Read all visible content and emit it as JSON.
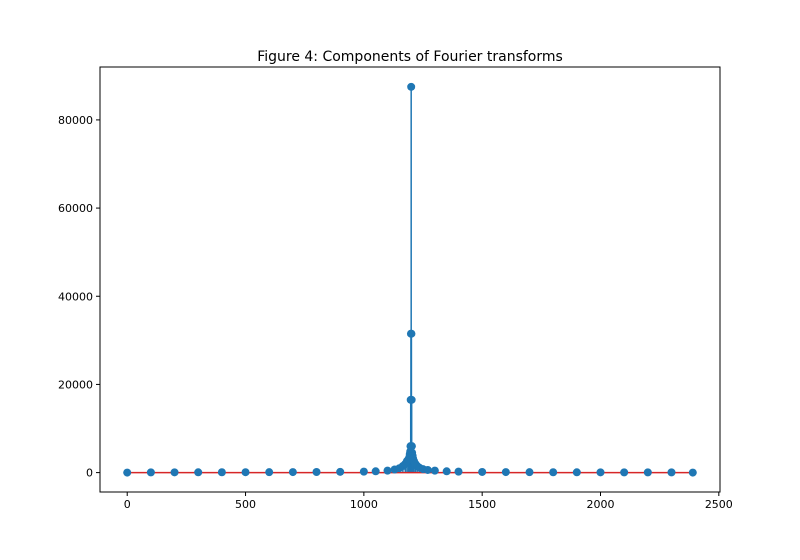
{
  "chart_data": {
    "type": "stem",
    "title": "Figure 4: Components of Fourier transforms",
    "xlabel": "",
    "ylabel": "",
    "xlim": [
      -115,
      2505
    ],
    "ylim": [
      -4400,
      92000
    ],
    "x_ticks": [
      0,
      500,
      1000,
      1500,
      2000,
      2500
    ],
    "y_ticks": [
      0,
      20000,
      40000,
      60000,
      80000
    ],
    "x_tick_labels": [
      "0",
      "500",
      "1000",
      "1500",
      "2000",
      "2500"
    ],
    "y_tick_labels": [
      "0",
      "20000",
      "40000",
      "60000",
      "80000"
    ],
    "colors": {
      "stem": "#1f77b4",
      "baseline": "#d62728"
    },
    "baseline": {
      "y": 0,
      "x_range": [
        0,
        2390
      ]
    },
    "series": [
      {
        "x": [
          0,
          100,
          200,
          300,
          400,
          500,
          600,
          700,
          800,
          900,
          1000,
          1050,
          1100,
          1130,
          1150,
          1165,
          1175,
          1182,
          1188,
          1192,
          1194,
          1196,
          1197,
          1198,
          1199,
          1200,
          1201,
          1202,
          1203,
          1204,
          1206,
          1208,
          1212,
          1218,
          1225,
          1235,
          1250,
          1270,
          1300,
          1350,
          1400,
          1500,
          1600,
          1700,
          1800,
          1900,
          2000,
          2100,
          2200,
          2300,
          2390
        ],
        "y": [
          0,
          50,
          60,
          70,
          80,
          90,
          100,
          120,
          140,
          170,
          220,
          300,
          450,
          700,
          1000,
          1500,
          2000,
          2600,
          3000,
          3500,
          4200,
          4800,
          6000,
          16500,
          31500,
          87500,
          31500,
          16500,
          6000,
          4500,
          3800,
          3200,
          2600,
          2000,
          1500,
          1100,
          800,
          600,
          450,
          300,
          220,
          150,
          120,
          100,
          80,
          70,
          60,
          55,
          50,
          50,
          0
        ]
      }
    ]
  }
}
